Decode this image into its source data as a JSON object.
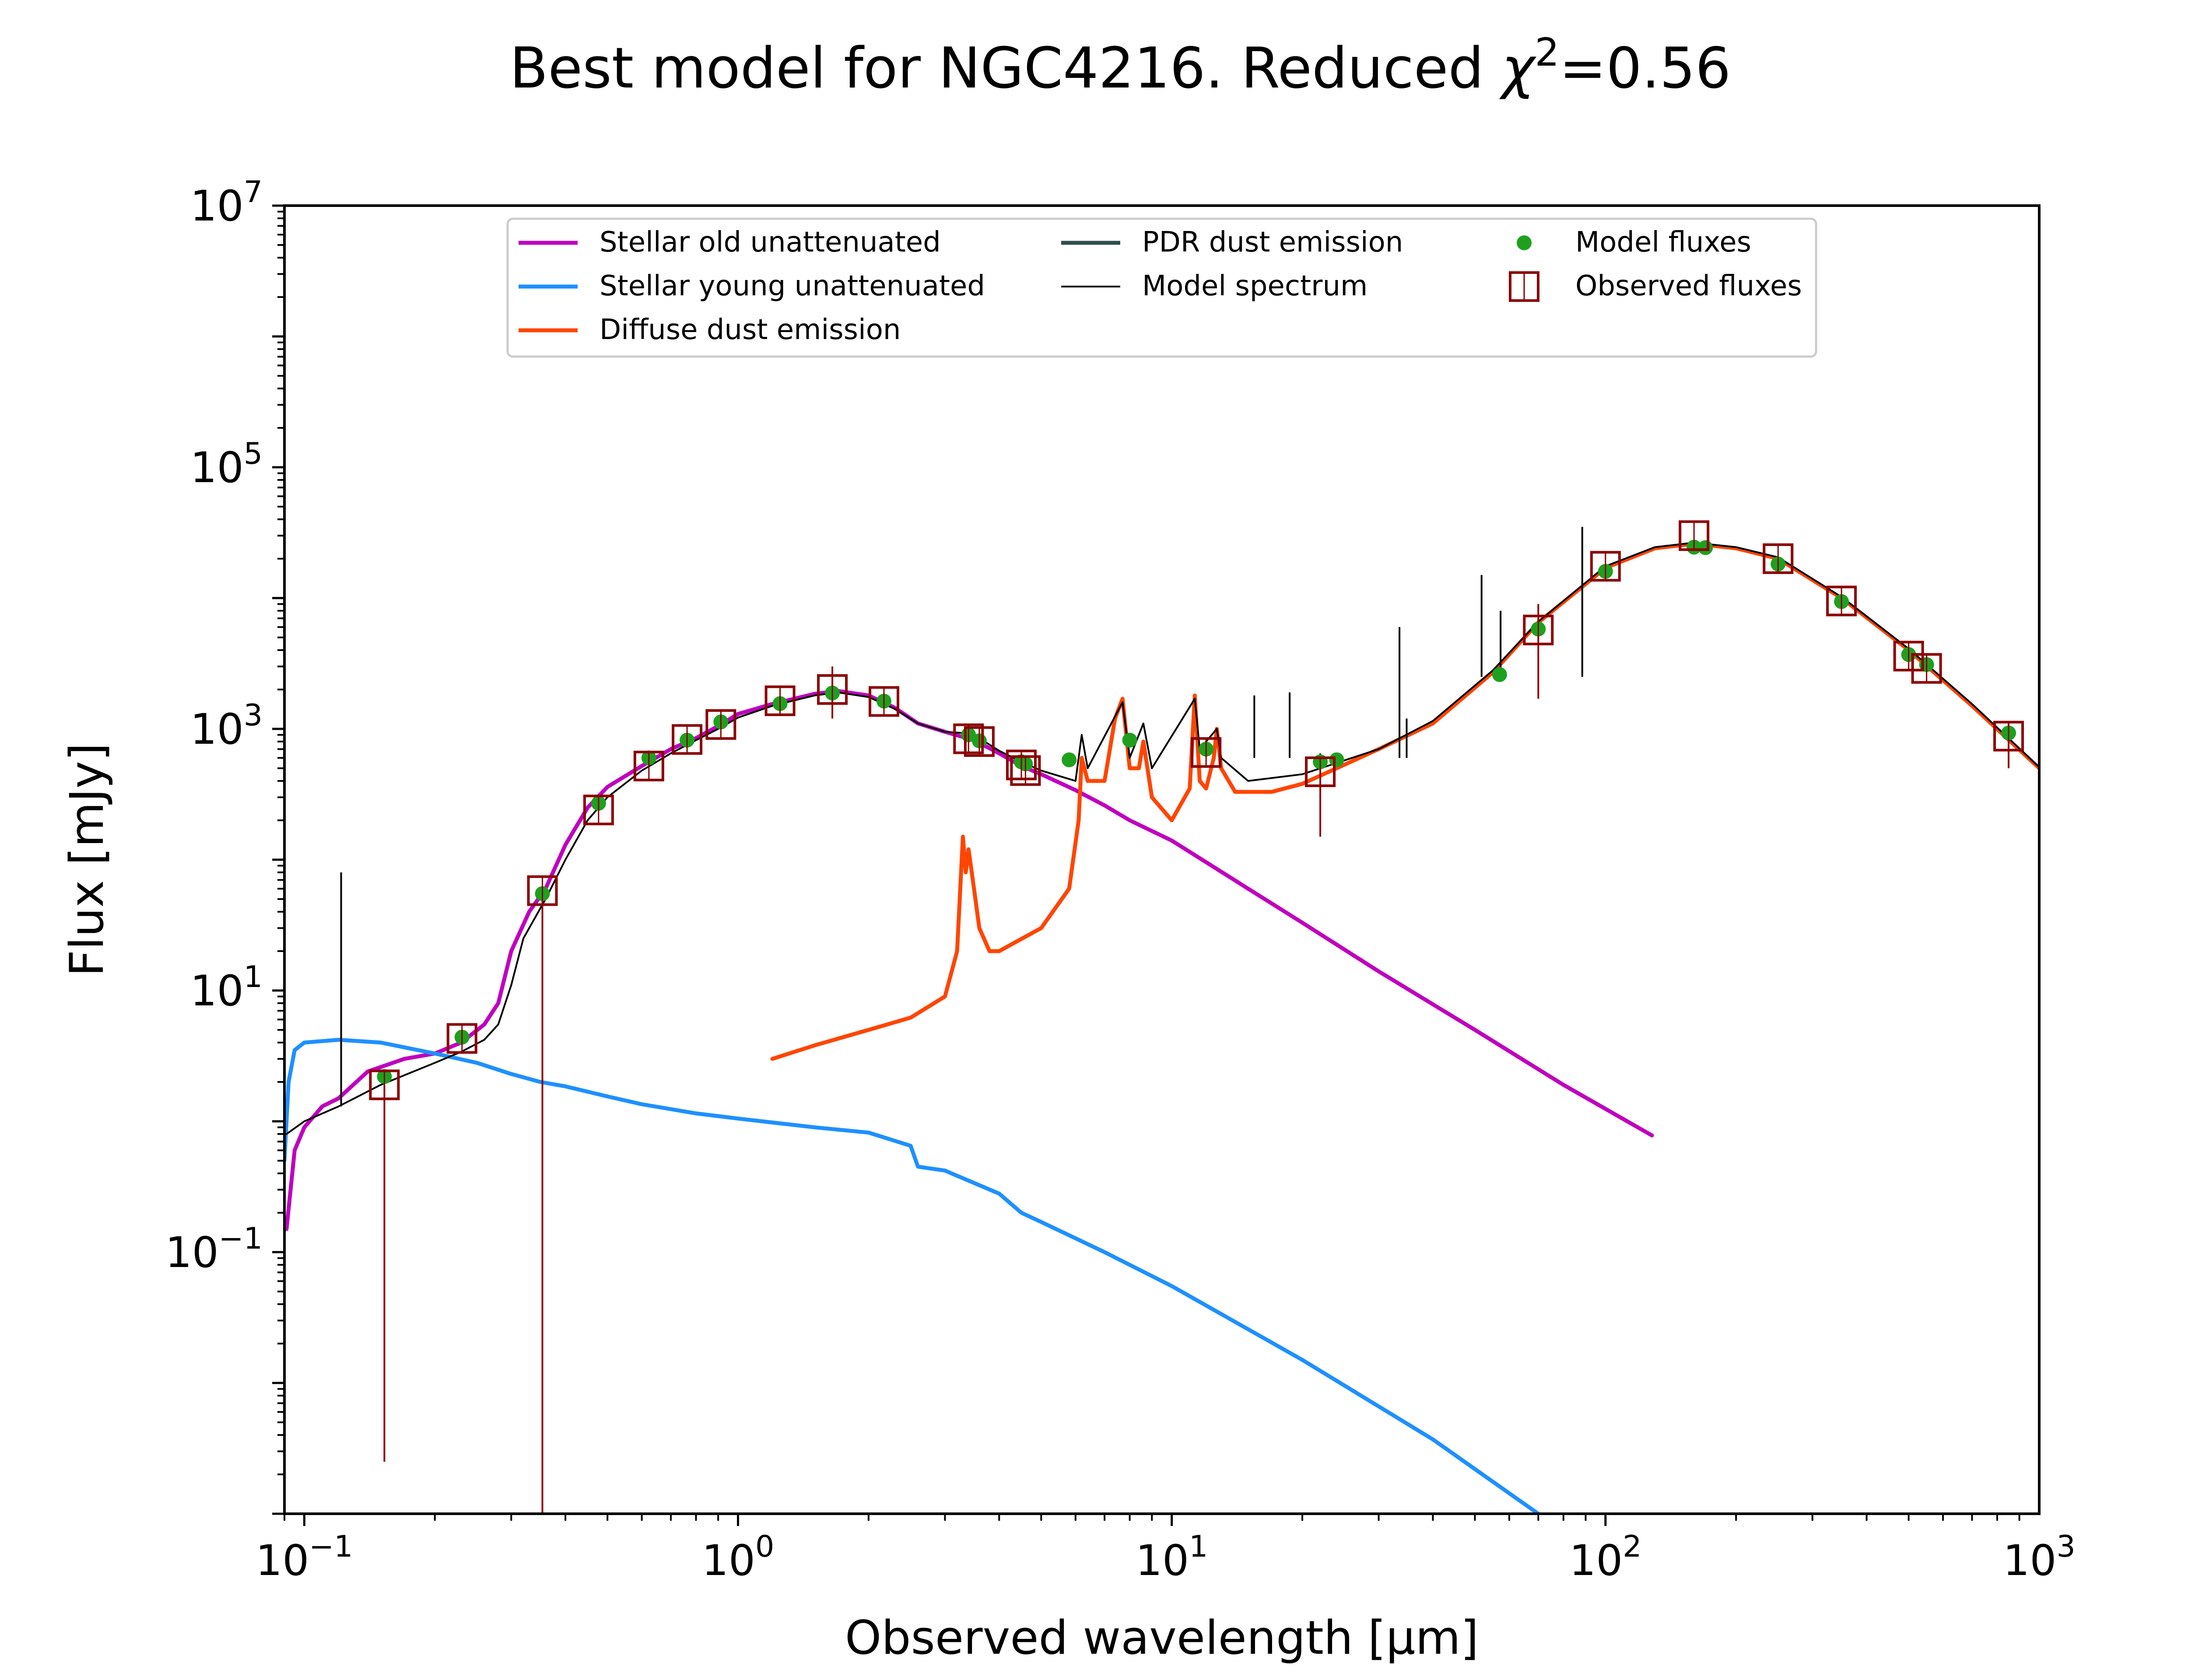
{
  "chart_data": {
    "type": "line",
    "title": {
      "main": "Best model for NGC4216. Reduced ",
      "chi_symbol": "χ",
      "chi_exp": "2",
      "chi_value": "=0.56"
    },
    "xlabel": "Observed wavelength [μm]",
    "ylabel": "Flux [mJy]",
    "xscale": "log",
    "yscale": "log",
    "xlim": [
      0.09,
      1000
    ],
    "ylim": [
      0.001,
      10000000
    ],
    "x_ticks": [
      {
        "value": 0.1,
        "base": "10",
        "exp": "−1"
      },
      {
        "value": 1,
        "base": "10",
        "exp": "0"
      },
      {
        "value": 10,
        "base": "10",
        "exp": "1"
      },
      {
        "value": 100,
        "base": "10",
        "exp": "2"
      },
      {
        "value": 1000,
        "base": "10",
        "exp": "3"
      }
    ],
    "y_ticks": [
      {
        "value": 0.1,
        "base": "10",
        "exp": "−1"
      },
      {
        "value": 10,
        "base": "10",
        "exp": "1"
      },
      {
        "value": 1000,
        "base": "10",
        "exp": "3"
      },
      {
        "value": 100000,
        "base": "10",
        "exp": "5"
      },
      {
        "value": 10000000,
        "base": "10",
        "exp": "7"
      }
    ],
    "grid": false,
    "legend_position": "top",
    "legend": [
      {
        "label": "Stellar old unattenuated",
        "kind": "line",
        "color": "#bf00bf"
      },
      {
        "label": "Stellar young unattenuated",
        "kind": "line",
        "color": "#1e90ff"
      },
      {
        "label": "Diffuse dust emission",
        "kind": "line",
        "color": "#ff4500"
      },
      {
        "label": "PDR dust emission",
        "kind": "line",
        "color": "#2f4f4f"
      },
      {
        "label": "Model spectrum",
        "kind": "thin-line",
        "color": "#000000"
      },
      {
        "label": "Model fluxes",
        "kind": "dot",
        "color": "#1ea01e"
      },
      {
        "label": "Observed fluxes",
        "kind": "square",
        "color": "#8b0000"
      }
    ],
    "series": [
      {
        "name": "Stellar old unattenuated",
        "color": "#bf00bf",
        "points": [
          [
            0.091,
            0.15
          ],
          [
            0.095,
            0.6
          ],
          [
            0.1,
            0.9
          ],
          [
            0.11,
            1.3
          ],
          [
            0.12,
            1.5
          ],
          [
            0.14,
            2.4
          ],
          [
            0.17,
            3.0
          ],
          [
            0.2,
            3.3
          ],
          [
            0.23,
            4.0
          ],
          [
            0.26,
            5.5
          ],
          [
            0.28,
            8.0
          ],
          [
            0.3,
            20
          ],
          [
            0.33,
            40
          ],
          [
            0.36,
            60
          ],
          [
            0.4,
            130
          ],
          [
            0.45,
            250
          ],
          [
            0.5,
            360
          ],
          [
            0.6,
            520
          ],
          [
            0.7,
            700
          ],
          [
            0.8,
            850
          ],
          [
            0.9,
            1050
          ],
          [
            1.0,
            1300
          ],
          [
            1.2,
            1550
          ],
          [
            1.5,
            1850
          ],
          [
            1.7,
            1950
          ],
          [
            2.0,
            1800
          ],
          [
            2.3,
            1450
          ],
          [
            2.6,
            1100
          ],
          [
            3.0,
            950
          ],
          [
            3.5,
            820
          ],
          [
            4.0,
            650
          ],
          [
            4.5,
            520
          ],
          [
            5.0,
            450
          ],
          [
            6.0,
            340
          ],
          [
            7.0,
            260
          ],
          [
            8.0,
            200
          ],
          [
            10.0,
            140
          ],
          [
            15.0,
            60
          ],
          [
            20.0,
            33
          ],
          [
            30.0,
            14
          ],
          [
            50.0,
            5
          ],
          [
            80.0,
            1.9
          ],
          [
            128.0,
            0.78
          ]
        ]
      },
      {
        "name": "Stellar young unattenuated",
        "color": "#1e90ff",
        "points": [
          [
            0.09,
            0.5
          ],
          [
            0.092,
            2.0
          ],
          [
            0.095,
            3.5
          ],
          [
            0.1,
            4.0
          ],
          [
            0.12,
            4.2
          ],
          [
            0.15,
            4.0
          ],
          [
            0.2,
            3.3
          ],
          [
            0.25,
            2.8
          ],
          [
            0.3,
            2.3
          ],
          [
            0.35,
            2.0
          ],
          [
            0.4,
            1.85
          ],
          [
            0.5,
            1.55
          ],
          [
            0.6,
            1.35
          ],
          [
            0.8,
            1.15
          ],
          [
            1.0,
            1.05
          ],
          [
            1.5,
            0.9
          ],
          [
            2.0,
            0.82
          ],
          [
            2.5,
            0.65
          ],
          [
            2.6,
            0.45
          ],
          [
            3.0,
            0.42
          ],
          [
            4.0,
            0.28
          ],
          [
            4.5,
            0.2
          ],
          [
            5.0,
            0.17
          ],
          [
            7.0,
            0.1
          ],
          [
            10.0,
            0.055
          ],
          [
            20.0,
            0.015
          ],
          [
            40.0,
            0.0037
          ],
          [
            70.0,
            0.001
          ]
        ]
      },
      {
        "name": "Diffuse dust emission",
        "color": "#ff4500",
        "points": [
          [
            1.2,
            3.0
          ],
          [
            1.5,
            3.8
          ],
          [
            2.0,
            5.0
          ],
          [
            2.5,
            6.2
          ],
          [
            3.0,
            9.0
          ],
          [
            3.2,
            20
          ],
          [
            3.3,
            150
          ],
          [
            3.35,
            80
          ],
          [
            3.4,
            120
          ],
          [
            3.5,
            60
          ],
          [
            3.6,
            30
          ],
          [
            3.8,
            20
          ],
          [
            4.0,
            20
          ],
          [
            5.0,
            30
          ],
          [
            5.8,
            60
          ],
          [
            6.1,
            200
          ],
          [
            6.2,
            600
          ],
          [
            6.4,
            400
          ],
          [
            7.0,
            400
          ],
          [
            7.4,
            1200
          ],
          [
            7.7,
            1700
          ],
          [
            8.0,
            500
          ],
          [
            8.4,
            500
          ],
          [
            8.6,
            800
          ],
          [
            9.0,
            300
          ],
          [
            10.0,
            200
          ],
          [
            11.0,
            350
          ],
          [
            11.3,
            1800
          ],
          [
            11.6,
            400
          ],
          [
            12.0,
            350
          ],
          [
            12.5,
            600
          ],
          [
            12.7,
            1000
          ],
          [
            13.0,
            500
          ],
          [
            14.0,
            330
          ],
          [
            17.0,
            330
          ],
          [
            20.0,
            380
          ],
          [
            30.0,
            700
          ],
          [
            40.0,
            1100
          ],
          [
            55.0,
            2700
          ],
          [
            70.0,
            6500
          ],
          [
            100.0,
            17000
          ],
          [
            130.0,
            24000
          ],
          [
            160.0,
            26000
          ],
          [
            200.0,
            24000
          ],
          [
            250.0,
            20000
          ],
          [
            350.0,
            10000
          ],
          [
            500.0,
            4000
          ],
          [
            700.0,
            1500
          ],
          [
            1000.0,
            500
          ]
        ]
      },
      {
        "name": "Model spectrum",
        "color": "#000000",
        "points": [
          [
            0.091,
            0.8
          ],
          [
            0.1,
            1.0
          ],
          [
            0.12,
            1.3
          ],
          [
            0.15,
            1.9
          ],
          [
            0.2,
            2.8
          ],
          [
            0.23,
            3.4
          ],
          [
            0.26,
            4.2
          ],
          [
            0.28,
            5.5
          ],
          [
            0.3,
            11
          ],
          [
            0.32,
            25
          ],
          [
            0.36,
            50
          ],
          [
            0.4,
            100
          ],
          [
            0.45,
            200
          ],
          [
            0.5,
            300
          ],
          [
            0.6,
            480
          ],
          [
            0.7,
            650
          ],
          [
            0.8,
            820
          ],
          [
            0.9,
            1000
          ],
          [
            1.0,
            1220
          ],
          [
            1.2,
            1500
          ],
          [
            1.5,
            1800
          ],
          [
            1.7,
            1900
          ],
          [
            2.0,
            1750
          ],
          [
            2.3,
            1420
          ],
          [
            2.6,
            1100
          ],
          [
            3.0,
            950
          ],
          [
            3.3,
            930
          ],
          [
            3.5,
            900
          ],
          [
            4.0,
            680
          ],
          [
            4.5,
            560
          ],
          [
            5.0,
            480
          ],
          [
            6.0,
            400
          ],
          [
            6.2,
            900
          ],
          [
            6.4,
            500
          ],
          [
            7.7,
            1600
          ],
          [
            8.0,
            600
          ],
          [
            8.6,
            1100
          ],
          [
            9.0,
            500
          ],
          [
            11.3,
            1700
          ],
          [
            11.6,
            700
          ],
          [
            12.7,
            1000
          ],
          [
            13.0,
            600
          ],
          [
            15.0,
            400
          ],
          [
            20.0,
            450
          ],
          [
            30.0,
            700
          ],
          [
            40.0,
            1150
          ],
          [
            55.0,
            2800
          ],
          [
            70.0,
            6600
          ],
          [
            100.0,
            17500
          ],
          [
            130.0,
            24500
          ],
          [
            160.0,
            26500
          ],
          [
            200.0,
            24500
          ],
          [
            250.0,
            20500
          ],
          [
            350.0,
            10200
          ],
          [
            500.0,
            4100
          ],
          [
            700.0,
            1550
          ],
          [
            1000.0,
            510
          ]
        ]
      }
    ],
    "emission_lines": [
      [
        0.1216,
        80
      ],
      [
        15.5,
        1800
      ],
      [
        18.7,
        1900
      ],
      [
        33.5,
        6000
      ],
      [
        34.8,
        1200
      ],
      [
        51.8,
        15000
      ],
      [
        57.3,
        8000
      ],
      [
        88.4,
        35000
      ]
    ],
    "model_fluxes": [
      [
        0.153,
        2.2
      ],
      [
        0.231,
        4.4
      ],
      [
        0.354,
        55
      ],
      [
        0.477,
        270
      ],
      [
        0.623,
        600
      ],
      [
        0.763,
        820
      ],
      [
        0.913,
        1130
      ],
      [
        1.25,
        1560
      ],
      [
        1.65,
        1880
      ],
      [
        2.17,
        1630
      ],
      [
        3.4,
        900
      ],
      [
        3.6,
        810
      ],
      [
        4.5,
        560
      ],
      [
        4.6,
        540
      ],
      [
        5.8,
        580
      ],
      [
        8.0,
        820
      ],
      [
        12.0,
        700
      ],
      [
        22.0,
        560
      ],
      [
        24.0,
        580
      ],
      [
        57.0,
        2600
      ],
      [
        70.0,
        5800
      ],
      [
        100.0,
        16000
      ],
      [
        160.0,
        24500
      ],
      [
        170.0,
        24300
      ],
      [
        250.0,
        18200
      ],
      [
        350.0,
        9400
      ],
      [
        500.0,
        3700
      ],
      [
        550.0,
        3100
      ],
      [
        850.0,
        930
      ]
    ],
    "observed_fluxes": [
      [
        0.153,
        1.9
      ],
      [
        0.231,
        4.3
      ],
      [
        0.354,
        58
      ],
      [
        0.477,
        240
      ],
      [
        0.623,
        520
      ],
      [
        0.763,
        830
      ],
      [
        0.913,
        1080
      ],
      [
        1.25,
        1640
      ],
      [
        1.65,
        2000
      ],
      [
        2.17,
        1620
      ],
      [
        3.4,
        840
      ],
      [
        3.6,
        800
      ],
      [
        4.5,
        530
      ],
      [
        4.6,
        480
      ],
      [
        12.0,
        660
      ],
      [
        22.0,
        470
      ],
      [
        70.0,
        5700
      ],
      [
        100.0,
        17500
      ],
      [
        160.0,
        30000
      ],
      [
        250.0,
        20000
      ],
      [
        350.0,
        9500
      ],
      [
        500.0,
        3600
      ],
      [
        550.0,
        2900
      ],
      [
        850.0,
        880
      ]
    ],
    "observed_errorbars": [
      [
        0.153,
        0.0025,
        1.9
      ],
      [
        0.354,
        0.001,
        58
      ],
      [
        1.65,
        1200,
        3000
      ],
      [
        22.0,
        150,
        650
      ],
      [
        70.0,
        1700,
        9000
      ],
      [
        850.0,
        500,
        1100
      ]
    ]
  }
}
